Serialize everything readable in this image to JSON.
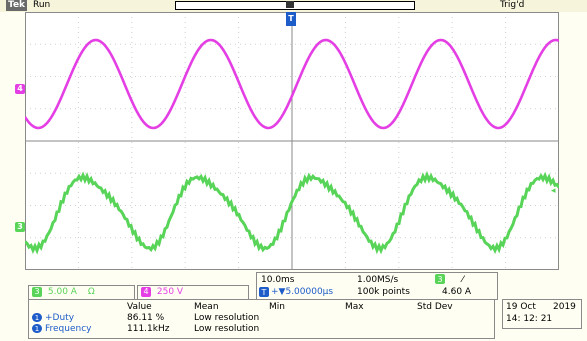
{
  "header": {
    "brand": "Tek",
    "acq_state": "Run",
    "trigger_status": "Trig'd"
  },
  "colors": {
    "ch4": "#e43fe4",
    "ch3": "#58d458",
    "readout_blue": "#1d5cc9"
  },
  "markers": {
    "ch4_label": "4",
    "ch3_label": "3",
    "trigger_label": "T",
    "trigger_level_icon": "trigger-level-arrow-icon"
  },
  "channels": [
    {
      "chip": "3",
      "scale": "5.00 A",
      "coupling": "Ω"
    },
    {
      "chip": "4",
      "scale": "250 V"
    }
  ],
  "timebase": {
    "scale": "10.0ms",
    "sample_rate": "1.00MS/s",
    "trigger_source": "3",
    "slope": "⁄",
    "delay_icon": "T",
    "delay": "+▼5.00000μs",
    "record_length": "100k points",
    "trigger_level": "4.60 A"
  },
  "measurements": {
    "headers": [
      "Value",
      "Mean",
      "Min",
      "Max",
      "Std Dev"
    ],
    "rows": [
      {
        "chip": "1",
        "name": "+Duty",
        "value": "86.11 %",
        "mean": "Low resolution"
      },
      {
        "chip": "1",
        "name": "Frequency",
        "value": "111.1kHz",
        "mean": "Low resolution"
      }
    ]
  },
  "datetime": {
    "date": "19 Oct",
    "year": "2019",
    "time": "14: 12: 21"
  }
}
